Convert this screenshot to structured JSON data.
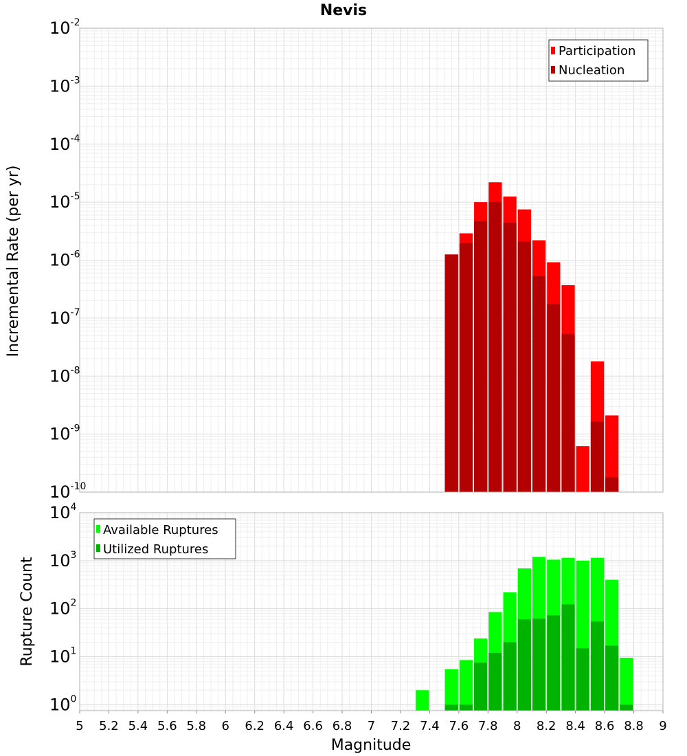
{
  "chart_data": [
    {
      "type": "bar",
      "title": "Nevis",
      "xlabel": "Magnitude",
      "ylabel": "Incremental Rate (per yr)",
      "yscale": "log",
      "xlim": [
        5,
        9
      ],
      "ylim": [
        1e-10,
        0.01
      ],
      "y_tick_exponents": [
        -10,
        -9,
        -8,
        -7,
        -6,
        -5,
        -4,
        -3,
        -2
      ],
      "legend_position": "top-right",
      "grid": true,
      "colors": {
        "Participation": "#ff0000",
        "Nucleation": "#b30000"
      },
      "categories": [
        7.55,
        7.65,
        7.75,
        7.85,
        7.95,
        8.05,
        8.15,
        8.25,
        8.35,
        8.45,
        8.55,
        8.65
      ],
      "series": [
        {
          "name": "Participation",
          "values": [
            1.25e-06,
            2.9e-06,
            1e-05,
            2.2e-05,
            1.25e-05,
            7.5e-06,
            2.2e-06,
            9.2e-07,
            3.7e-07,
            6.2e-10,
            1.8e-08,
            2.1e-09
          ]
        },
        {
          "name": "Nucleation",
          "values": [
            1.25e-06,
            1.95e-06,
            4.7e-06,
            1e-05,
            4.4e-06,
            2.1e-06,
            5.3e-07,
            1.75e-07,
            5.3e-08,
            0,
            1.65e-09,
            1.8e-10
          ]
        }
      ]
    },
    {
      "type": "bar",
      "title": "",
      "xlabel": "Magnitude",
      "ylabel": "Rupture Count",
      "yscale": "log",
      "xlim": [
        5,
        9
      ],
      "ylim": [
        0.75,
        10000.0
      ],
      "y_tick_exponents": [
        0,
        1,
        2,
        3,
        4
      ],
      "x_ticks": [
        "5",
        "5.2",
        "5.4",
        "5.6",
        "5.8",
        "6",
        "6.2",
        "6.4",
        "6.6",
        "6.8",
        "7",
        "7.2",
        "7.4",
        "7.6",
        "7.8",
        "8",
        "8.2",
        "8.4",
        "8.6",
        "8.8",
        "9"
      ],
      "legend_position": "top-left",
      "grid": true,
      "colors": {
        "Available Ruptures": "#00ff00",
        "Utilized Ruptures": "#00b300"
      },
      "categories": [
        7.35,
        7.55,
        7.65,
        7.75,
        7.85,
        7.95,
        8.05,
        8.15,
        8.25,
        8.35,
        8.45,
        8.55,
        8.65,
        8.75
      ],
      "series": [
        {
          "name": "Available Ruptures",
          "values": [
            2,
            5.5,
            8.5,
            24,
            85,
            220,
            690,
            1200,
            1050,
            1150,
            1000,
            1150,
            400,
            9.5
          ]
        },
        {
          "name": "Utilized Ruptures",
          "values": [
            0,
            1,
            1,
            7.5,
            12,
            20,
            60,
            62,
            73,
            123,
            15,
            54,
            17,
            1
          ]
        }
      ]
    }
  ]
}
